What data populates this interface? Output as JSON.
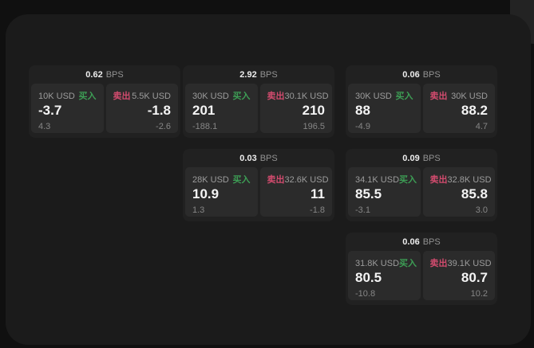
{
  "labels": {
    "unit": "BPS",
    "buy": "买入",
    "sell": "卖出"
  },
  "colors": {
    "buy": "#3d9e55",
    "sell": "#d24b6e",
    "page_background": "#101010",
    "window_background": "#1b1b1b",
    "card_background": "#212121",
    "panel_background": "#2b2b2b"
  },
  "cards": [
    {
      "row": 0,
      "col": 0,
      "bps": "0.62",
      "buy": {
        "notional": "10K USD",
        "value": "-3.7",
        "delta": "4.3"
      },
      "sell": {
        "notional": "5.5K USD",
        "value": "-1.8",
        "delta": "-2.6"
      }
    },
    {
      "row": 0,
      "col": 1,
      "bps": "2.92",
      "buy": {
        "notional": "30K USD",
        "value": "201",
        "delta": "-188.1"
      },
      "sell": {
        "notional": "30.1K USD",
        "value": "210",
        "delta": "196.5"
      }
    },
    {
      "row": 0,
      "col": 2,
      "bps": "0.06",
      "buy": {
        "notional": "30K USD",
        "value": "88",
        "delta": "-4.9"
      },
      "sell": {
        "notional": "30K USD",
        "value": "88.2",
        "delta": "4.7"
      }
    },
    {
      "row": 1,
      "col": 1,
      "bps": "0.03",
      "buy": {
        "notional": "28K USD",
        "value": "10.9",
        "delta": "1.3"
      },
      "sell": {
        "notional": "32.6K USD",
        "value": "11",
        "delta": "-1.8"
      }
    },
    {
      "row": 1,
      "col": 2,
      "bps": "0.09",
      "buy": {
        "notional": "34.1K USD",
        "value": "85.5",
        "delta": "-3.1"
      },
      "sell": {
        "notional": "32.8K USD",
        "value": "85.8",
        "delta": "3.0"
      }
    },
    {
      "row": 2,
      "col": 2,
      "bps": "0.06",
      "buy": {
        "notional": "31.8K USD",
        "value": "80.5",
        "delta": "-10.8"
      },
      "sell": {
        "notional": "39.1K USD",
        "value": "80.7",
        "delta": "10.2"
      }
    }
  ]
}
